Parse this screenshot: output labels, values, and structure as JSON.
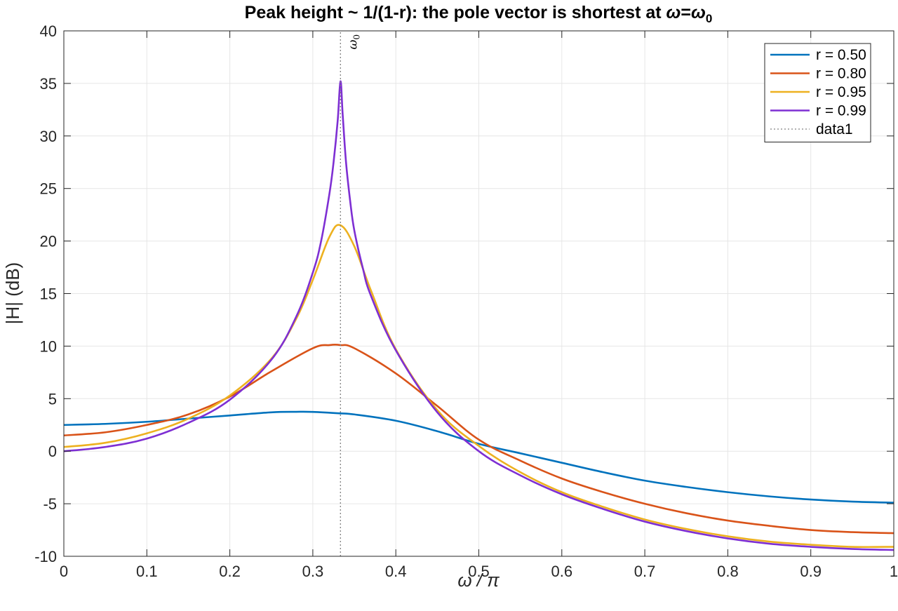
{
  "chart_data": {
    "type": "line",
    "title": "Peak height ~ 1/(1-r): the pole vector is shortest at ω=ω0",
    "title_main": "Peak height ~ 1/(1-r): the pole vector is shortest at ",
    "title_omega": "ω",
    "title_eq": "=",
    "title_omega0": "ω",
    "title_sub0": "0",
    "xlabel": "ω / π",
    "ylabel": "|H| (dB)",
    "xlim": [
      0,
      1
    ],
    "ylim": [
      -10,
      40
    ],
    "xticks": [
      0,
      0.1,
      0.2,
      0.3,
      0.4,
      0.5,
      0.6,
      0.7,
      0.8,
      0.9,
      1
    ],
    "xtick_labels": [
      "0",
      "0.1",
      "0.2",
      "0.3",
      "0.4",
      "0.5",
      "0.6",
      "0.7",
      "0.8",
      "0.9",
      "1"
    ],
    "yticks": [
      -10,
      -5,
      0,
      5,
      10,
      15,
      20,
      25,
      30,
      35,
      40
    ],
    "ytick_labels": [
      "-10",
      "-5",
      "0",
      "5",
      "10",
      "15",
      "20",
      "25",
      "30",
      "35",
      "40"
    ],
    "grid": true,
    "legend_position": "top-right",
    "pole_angle_over_pi": 0.3333,
    "annotation": {
      "text": "ω",
      "sub": "0",
      "x": 0.3333
    },
    "series": [
      {
        "name": "r = 0.50",
        "r": 0.5,
        "color": "#0072BD",
        "x": [
          0,
          0.05,
          0.1,
          0.15,
          0.2,
          0.25,
          0.28,
          0.3,
          0.3333,
          0.35,
          0.4,
          0.45,
          0.5,
          0.55,
          0.6,
          0.65,
          0.7,
          0.75,
          0.8,
          0.85,
          0.9,
          0.95,
          1
        ],
        "y": [
          2.5,
          2.6,
          2.8,
          3.1,
          3.4,
          3.7,
          3.75,
          3.74,
          3.6,
          3.5,
          2.9,
          1.9,
          0.7,
          -0.2,
          -1.1,
          -2.0,
          -2.8,
          -3.4,
          -3.9,
          -4.3,
          -4.6,
          -4.8,
          -4.9
        ]
      },
      {
        "name": "r = 0.80",
        "r": 0.8,
        "color": "#D95319",
        "x": [
          0,
          0.05,
          0.1,
          0.15,
          0.2,
          0.25,
          0.3,
          0.32,
          0.3333,
          0.35,
          0.4,
          0.45,
          0.5,
          0.55,
          0.6,
          0.65,
          0.7,
          0.75,
          0.8,
          0.85,
          0.9,
          0.95,
          1
        ],
        "y": [
          1.5,
          1.8,
          2.5,
          3.5,
          5.2,
          7.6,
          9.8,
          10.1,
          10.1,
          9.8,
          7.4,
          4.3,
          1.1,
          -0.9,
          -2.6,
          -3.9,
          -5.0,
          -5.9,
          -6.6,
          -7.1,
          -7.5,
          -7.7,
          -7.8
        ]
      },
      {
        "name": "r = 0.95",
        "r": 0.95,
        "color": "#EDB120",
        "x": [
          0,
          0.05,
          0.1,
          0.15,
          0.2,
          0.25,
          0.28,
          0.3,
          0.32,
          0.3333,
          0.35,
          0.37,
          0.4,
          0.45,
          0.5,
          0.55,
          0.6,
          0.65,
          0.7,
          0.75,
          0.8,
          0.85,
          0.9,
          0.95,
          1
        ],
        "y": [
          0.4,
          0.8,
          1.7,
          3.1,
          5.3,
          8.8,
          12.6,
          16.3,
          20.4,
          21.5,
          19.5,
          15.3,
          9.7,
          3.9,
          0.5,
          -2.0,
          -3.9,
          -5.3,
          -6.5,
          -7.4,
          -8.1,
          -8.6,
          -8.9,
          -9.1,
          -9.1
        ]
      },
      {
        "name": "r = 0.99",
        "r": 0.99,
        "color": "#7E2FD3",
        "x": [
          0,
          0.05,
          0.1,
          0.15,
          0.2,
          0.25,
          0.28,
          0.3,
          0.31,
          0.32,
          0.325,
          0.33,
          0.3333,
          0.336,
          0.34,
          0.345,
          0.35,
          0.36,
          0.37,
          0.4,
          0.45,
          0.5,
          0.55,
          0.6,
          0.65,
          0.7,
          0.75,
          0.8,
          0.85,
          0.9,
          0.95,
          1
        ],
        "y": [
          0.0,
          0.4,
          1.2,
          2.7,
          4.9,
          8.7,
          12.8,
          17.0,
          20.0,
          24.5,
          27.5,
          31.5,
          35.2,
          32.0,
          27.5,
          23.8,
          21.0,
          17.5,
          14.8,
          9.6,
          3.7,
          0.0,
          -2.3,
          -4.1,
          -5.5,
          -6.7,
          -7.6,
          -8.3,
          -8.8,
          -9.1,
          -9.3,
          -9.4
        ]
      },
      {
        "name": "data1",
        "color": "#808080",
        "style": "dotted",
        "x": [
          0.3333,
          0.3333
        ],
        "y": [
          -10,
          40
        ]
      }
    ]
  }
}
